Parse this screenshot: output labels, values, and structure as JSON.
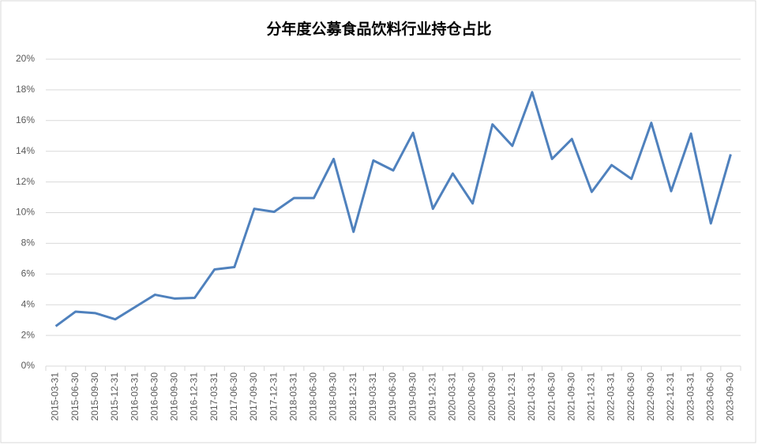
{
  "chart_data": {
    "type": "line",
    "title": "分年度公募食品饮料行业持仓占比",
    "categories": [
      "2015-03-31",
      "2015-06-30",
      "2015-09-30",
      "2015-12-31",
      "2016-03-31",
      "2016-06-30",
      "2016-09-30",
      "2016-12-31",
      "2017-03-31",
      "2017-06-30",
      "2017-09-30",
      "2017-12-31",
      "2018-03-31",
      "2018-06-30",
      "2018-09-30",
      "2018-12-31",
      "2019-03-31",
      "2019-06-30",
      "2019-09-30",
      "2019-12-31",
      "2020-03-31",
      "2020-06-30",
      "2020-09-30",
      "2020-12-31",
      "2021-03-31",
      "2021-06-30",
      "2021-09-30",
      "2021-12-31",
      "2022-03-31",
      "2022-06-30",
      "2022-09-30",
      "2022-12-31",
      "2023-03-31",
      "2023-06-30",
      "2023-09-30"
    ],
    "values": [
      2.6,
      3.55,
      3.45,
      3.05,
      3.85,
      4.65,
      4.4,
      4.45,
      6.3,
      6.45,
      10.25,
      10.05,
      10.95,
      10.95,
      13.5,
      8.75,
      13.4,
      12.75,
      15.2,
      10.25,
      12.55,
      10.6,
      15.75,
      14.35,
      17.85,
      13.5,
      14.8,
      11.35,
      13.1,
      12.2,
      15.85,
      11.4,
      15.15,
      9.3,
      13.8
    ],
    "color": "#4f81bd",
    "ylim": [
      0,
      20
    ],
    "yticks": [
      {
        "value": 0,
        "label": "0%"
      },
      {
        "value": 2,
        "label": "2%"
      },
      {
        "value": 4,
        "label": "4%"
      },
      {
        "value": 6,
        "label": "6%"
      },
      {
        "value": 8,
        "label": "8%"
      },
      {
        "value": 10,
        "label": "10%"
      },
      {
        "value": 12,
        "label": "12%"
      },
      {
        "value": 14,
        "label": "14%"
      },
      {
        "value": 16,
        "label": "16%"
      },
      {
        "value": 18,
        "label": "18%"
      },
      {
        "value": 20,
        "label": "20%"
      }
    ],
    "grid": true
  }
}
